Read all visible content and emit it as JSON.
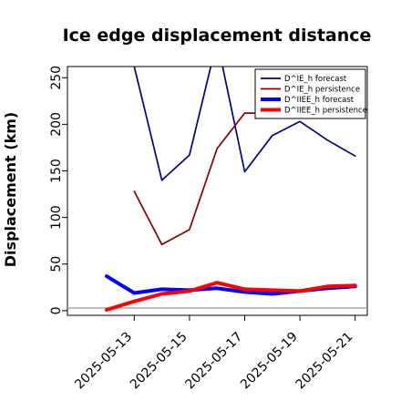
{
  "chart_data": {
    "type": "line",
    "title": "Ice edge displacement distance",
    "xlabel": "",
    "ylabel": "Displacement (km)",
    "x": [
      "2025-05-12",
      "2025-05-13",
      "2025-05-14",
      "2025-05-15",
      "2025-05-16",
      "2025-05-17",
      "2025-05-18",
      "2025-05-19",
      "2025-05-20",
      "2025-05-21"
    ],
    "xticks": [
      "2025-05-13",
      "2025-05-15",
      "2025-05-17",
      "2025-05-19",
      "2025-05-21"
    ],
    "highlight_tick": "2025-05-13",
    "highlight_color": "#228b22",
    "yticks": [
      0,
      50,
      100,
      150,
      200,
      250
    ],
    "ylim": [
      -5,
      262
    ],
    "legend_position": "top-right",
    "series": [
      {
        "name": "D^IE_h forecast",
        "color": "#00008b",
        "width": 1.7,
        "values": [
          null,
          262,
          140,
          167,
          290,
          149,
          188,
          203,
          183,
          166
        ]
      },
      {
        "name": "D^IE_h persistence",
        "color": "#8b0000",
        "width": 1.7,
        "values": [
          null,
          128,
          71,
          87,
          174,
          212,
          212,
          212,
          212,
          212
        ]
      },
      {
        "name": "D^IIEE_h forecast",
        "color": "#0000ff",
        "width": 4,
        "values": [
          37,
          19,
          23,
          22,
          24,
          20,
          18,
          21,
          24,
          26
        ]
      },
      {
        "name": "D^IIEE_h persistence",
        "color": "#ff0000",
        "width": 4,
        "values": [
          1,
          10,
          18,
          21,
          30,
          23,
          22,
          21,
          26,
          27
        ]
      }
    ],
    "grid": false
  }
}
